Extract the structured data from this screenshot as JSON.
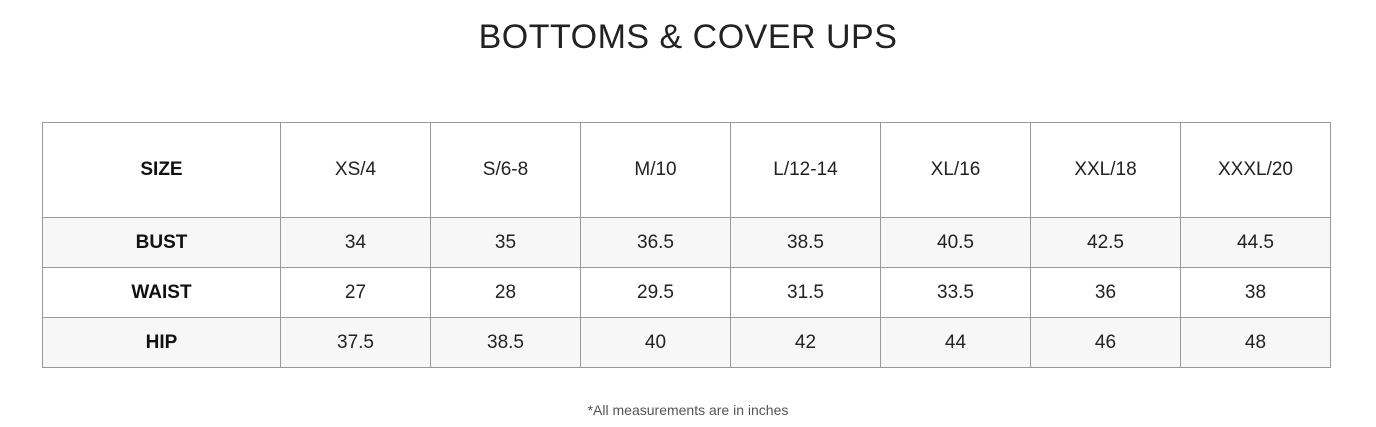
{
  "title": "BOTTOMS & COVER UPS",
  "table": {
    "header_label": "SIZE",
    "sizes": [
      "XS/4",
      "S/6-8",
      "M/10",
      "L/12-14",
      "XL/16",
      "XXL/18",
      "XXXL/20"
    ],
    "rows": [
      {
        "label": "BUST",
        "values": [
          "34",
          "35",
          "36.5",
          "38.5",
          "40.5",
          "42.5",
          "44.5"
        ]
      },
      {
        "label": "WAIST",
        "values": [
          "27",
          "28",
          "29.5",
          "31.5",
          "33.5",
          "36",
          "38"
        ]
      },
      {
        "label": "HIP",
        "values": [
          "37.5",
          "38.5",
          "40",
          "42",
          "44",
          "46",
          "48"
        ]
      }
    ]
  },
  "footnote": "*All measurements are in inches",
  "colors": {
    "border": "#999999",
    "alt_row": "#f7f7f7",
    "text": "#222222"
  }
}
